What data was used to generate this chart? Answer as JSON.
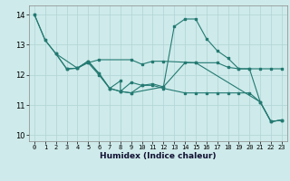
{
  "xlabel": "Humidex (Indice chaleur)",
  "xlim": [
    -0.5,
    23.5
  ],
  "ylim": [
    9.8,
    14.3
  ],
  "yticks": [
    10,
    11,
    12,
    13,
    14
  ],
  "xticks": [
    0,
    1,
    2,
    3,
    4,
    5,
    6,
    7,
    8,
    9,
    10,
    11,
    12,
    13,
    14,
    15,
    16,
    17,
    18,
    19,
    20,
    21,
    22,
    23
  ],
  "bg_color": "#ceeaea",
  "grid_color": "#b0d4d4",
  "line_color": "#237a72",
  "line1_x": [
    0,
    1,
    2,
    3,
    4,
    5,
    6,
    7,
    8,
    9,
    10,
    11,
    12,
    13,
    14,
    15,
    16,
    17,
    18,
    19,
    20,
    21,
    22,
    23
  ],
  "line1_y": [
    14.0,
    13.15,
    12.7,
    12.2,
    12.22,
    12.45,
    12.05,
    11.55,
    11.45,
    11.4,
    11.65,
    11.7,
    11.6,
    13.6,
    13.85,
    13.85,
    13.2,
    12.8,
    12.55,
    12.2,
    12.2,
    11.1,
    10.45,
    10.5
  ],
  "line2_x": [
    2,
    3,
    4,
    5,
    5,
    6,
    9,
    10,
    11,
    12,
    15,
    17,
    18,
    19,
    20,
    21,
    22,
    23
  ],
  "line2_y": [
    12.7,
    12.2,
    12.22,
    12.45,
    12.4,
    12.5,
    12.5,
    12.35,
    12.45,
    12.45,
    12.4,
    12.4,
    12.25,
    12.2,
    12.2,
    12.2,
    12.2,
    12.2
  ],
  "line3_x": [
    0,
    1,
    2,
    4,
    5,
    6,
    7,
    8,
    9,
    12,
    14,
    15,
    21,
    22,
    23
  ],
  "line3_y": [
    14.0,
    13.15,
    12.7,
    12.22,
    12.45,
    12.05,
    11.55,
    11.45,
    11.4,
    11.6,
    12.4,
    12.4,
    11.1,
    10.45,
    10.5
  ],
  "line4_x": [
    3,
    4,
    5,
    6,
    7,
    8,
    8,
    9,
    10,
    11,
    12,
    14,
    15,
    16,
    17,
    18,
    19,
    20,
    21,
    22,
    23
  ],
  "line4_y": [
    12.2,
    12.22,
    12.4,
    12.0,
    11.55,
    11.8,
    11.45,
    11.75,
    11.65,
    11.65,
    11.55,
    11.4,
    11.4,
    11.4,
    11.4,
    11.4,
    11.4,
    11.4,
    11.1,
    10.45,
    10.5
  ]
}
